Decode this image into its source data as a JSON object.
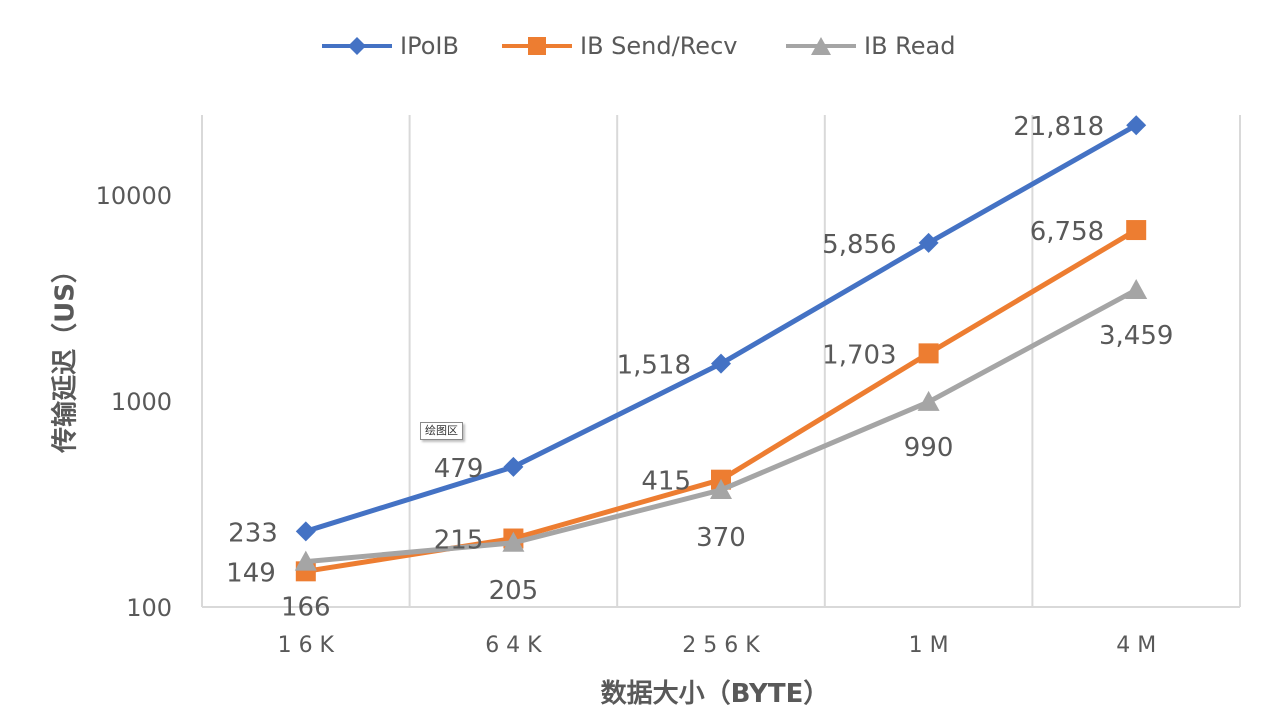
{
  "chart_data": {
    "type": "line",
    "categories": [
      "16K",
      "64K",
      "256K",
      "1M",
      "4M"
    ],
    "series": [
      {
        "name": "IPoIB",
        "color": "#4472C4",
        "marker": "diamond",
        "values": [
          233,
          479,
          1518,
          5856,
          21818
        ],
        "labels": [
          "233",
          "479",
          "1,518",
          "5,856",
          "21,818"
        ]
      },
      {
        "name": "IB Send/Recv",
        "color": "#ED7D31",
        "marker": "square",
        "values": [
          149,
          215,
          415,
          1703,
          6758
        ],
        "labels": [
          "149",
          "215",
          "415",
          "1,703",
          "6,758"
        ]
      },
      {
        "name": "IB Read",
        "color": "#A5A5A5",
        "marker": "triangle",
        "values": [
          166,
          205,
          370,
          990,
          3459
        ],
        "labels": [
          "166",
          "205",
          "370",
          "990",
          "3,459"
        ]
      }
    ],
    "xlabel": "数据大小（BYTE）",
    "ylabel": "传输延迟（US）",
    "yscale": "log",
    "ylim": [
      100,
      25000
    ],
    "yticks": [
      100,
      1000,
      10000
    ],
    "ytick_labels": [
      "100",
      "1000",
      "10000"
    ],
    "xtick_labels": [
      "1 6 K",
      "6 4 K",
      "2 5 6 K",
      "1 M",
      "4 M"
    ],
    "grid": "vertical",
    "legend": "top-center"
  },
  "tooltip": "绘图区"
}
